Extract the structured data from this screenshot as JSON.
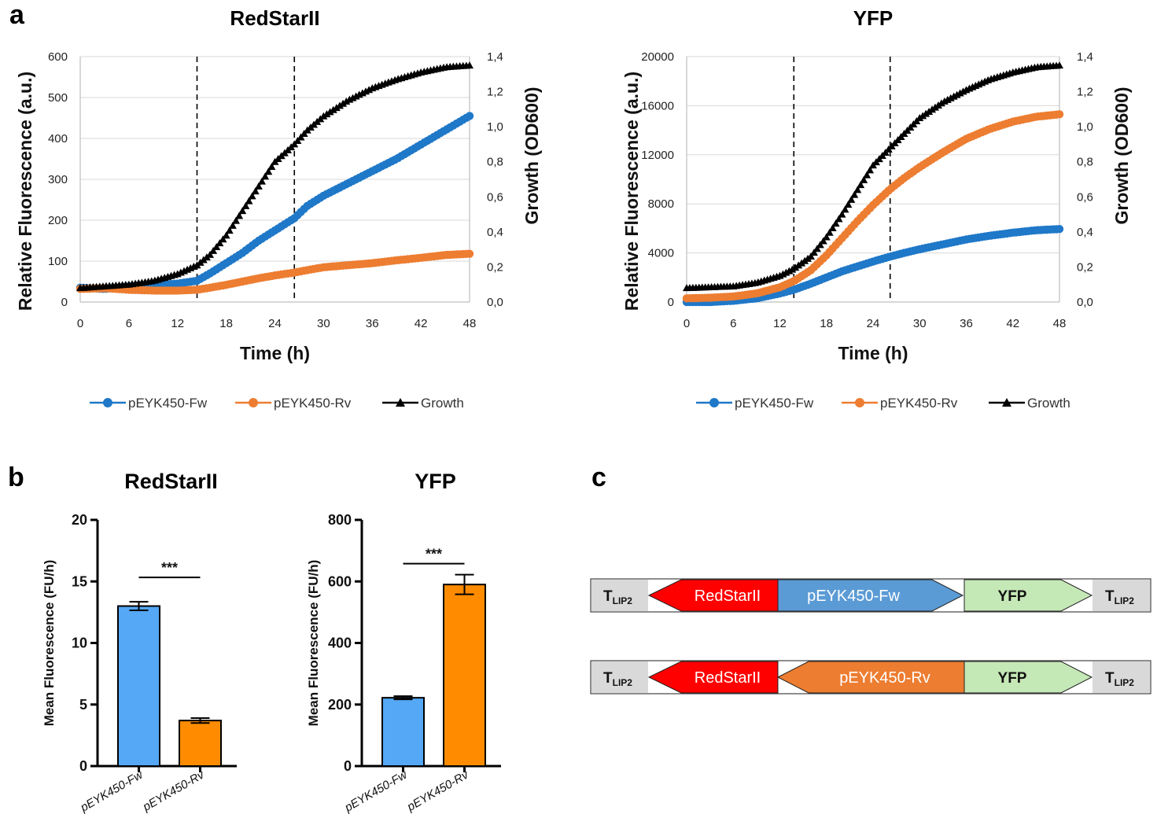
{
  "panel_labels": {
    "a": "a",
    "b": "b",
    "c": "c"
  },
  "colors": {
    "fw": "#1F78C8",
    "rv": "#ED7D31",
    "growth": "#000000",
    "bar_fw": "#55A8F5",
    "bar_rv": "#FF8C00"
  },
  "chart_data": [
    {
      "id": "a-redstar",
      "type": "line",
      "title": "RedStarII",
      "xlabel": "Time (h)",
      "ylabel": "Relative Fluorescence (a.u.)",
      "y2label": "Growth (OD600)",
      "xlim": [
        0,
        48
      ],
      "ylim": [
        0,
        600
      ],
      "y2lim": [
        0,
        1.4
      ],
      "xticks": [
        "0",
        "6",
        "12",
        "18",
        "24",
        "30",
        "36",
        "42",
        "48"
      ],
      "yticks": [
        "0",
        "100",
        "200",
        "300",
        "400",
        "500",
        "600"
      ],
      "y2ticks": [
        "0,0",
        "0,2",
        "0,4",
        "0,6",
        "0,8",
        "1,0",
        "1,2",
        "1,4"
      ],
      "vlines": [
        14.4,
        26.4
      ],
      "x": [
        0,
        3,
        6,
        9,
        12,
        14.4,
        16,
        18,
        20,
        22,
        24,
        26.4,
        28,
        30,
        33,
        36,
        39,
        42,
        45,
        48
      ],
      "series": [
        {
          "name": "pEYK450-Fw",
          "axis": "left",
          "marker": "circle",
          "values": [
            35,
            32,
            38,
            42,
            45,
            52,
            70,
            95,
            120,
            150,
            175,
            205,
            235,
            260,
            290,
            320,
            350,
            385,
            420,
            455
          ]
        },
        {
          "name": "pEYK450-Rv",
          "axis": "left",
          "marker": "circle",
          "values": [
            32,
            34,
            30,
            28,
            28,
            30,
            35,
            42,
            50,
            58,
            65,
            72,
            78,
            85,
            90,
            95,
            102,
            108,
            115,
            118
          ]
        },
        {
          "name": "Growth",
          "axis": "right",
          "marker": "triangle",
          "values": [
            0.08,
            0.09,
            0.1,
            0.12,
            0.16,
            0.21,
            0.27,
            0.38,
            0.52,
            0.66,
            0.8,
            0.9,
            0.98,
            1.06,
            1.15,
            1.22,
            1.27,
            1.31,
            1.34,
            1.35
          ]
        }
      ],
      "legend": [
        "pEYK450-Fw",
        "pEYK450-Rv",
        "Growth"
      ],
      "legend_position": "bottom"
    },
    {
      "id": "a-yfp",
      "type": "line",
      "title": "YFP",
      "xlabel": "Time (h)",
      "ylabel": "Relative Fluorescence (a.u.)",
      "y2label": "Growth (OD600)",
      "xlim": [
        0,
        48
      ],
      "ylim": [
        0,
        20000
      ],
      "y2lim": [
        0,
        1.4
      ],
      "xticks": [
        "0",
        "6",
        "12",
        "18",
        "24",
        "30",
        "36",
        "42",
        "48"
      ],
      "yticks": [
        "0",
        "4000",
        "8000",
        "12000",
        "16000",
        "20000"
      ],
      "y2ticks": [
        "0,0",
        "0,2",
        "0,4",
        "0,6",
        "0,8",
        "1,0",
        "1,2",
        "1,4"
      ],
      "vlines": [
        13.8,
        26.2
      ],
      "x": [
        0,
        3,
        6,
        9,
        12,
        13.8,
        16,
        18,
        20,
        22,
        24,
        26.2,
        28,
        30,
        33,
        36,
        39,
        42,
        45,
        48
      ],
      "series": [
        {
          "name": "pEYK450-Fw",
          "axis": "left",
          "marker": "circle",
          "values": [
            0,
            0,
            100,
            300,
            700,
            1000,
            1500,
            2000,
            2500,
            2900,
            3300,
            3700,
            4000,
            4300,
            4700,
            5100,
            5400,
            5650,
            5850,
            5950
          ]
        },
        {
          "name": "pEYK450-Rv",
          "axis": "left",
          "marker": "circle",
          "values": [
            300,
            350,
            450,
            700,
            1200,
            1700,
            2600,
            3800,
            5200,
            6600,
            7900,
            9200,
            10100,
            11000,
            12200,
            13300,
            14100,
            14700,
            15100,
            15300
          ]
        },
        {
          "name": "Growth",
          "axis": "right",
          "marker": "triangle",
          "values": [
            0.08,
            0.085,
            0.09,
            0.11,
            0.15,
            0.19,
            0.26,
            0.37,
            0.5,
            0.64,
            0.78,
            0.88,
            0.96,
            1.05,
            1.14,
            1.21,
            1.27,
            1.31,
            1.34,
            1.35
          ]
        }
      ],
      "legend": [
        "pEYK450-Fw",
        "pEYK450-Rv",
        "Growth"
      ],
      "legend_position": "bottom"
    },
    {
      "id": "b-redstar",
      "type": "bar",
      "title": "RedStarII",
      "ylabel": "Mean Fluorescence (FU/h)",
      "ylim": [
        0,
        20
      ],
      "yticks": [
        "0",
        "5",
        "10",
        "15",
        "20"
      ],
      "categories": [
        "pEYK450-Fw",
        "pEYK450-Rv"
      ],
      "values": [
        13.0,
        3.7
      ],
      "errors": [
        0.35,
        0.2
      ],
      "significance": "***"
    },
    {
      "id": "b-yfp",
      "type": "bar",
      "title": "YFP",
      "ylabel": "Mean Fluorescence (FU/h)",
      "ylim": [
        0,
        800
      ],
      "yticks": [
        "0",
        "200",
        "400",
        "600",
        "800"
      ],
      "categories": [
        "pEYK450-Fw",
        "pEYK450-Rv"
      ],
      "values": [
        222,
        590
      ],
      "errors": [
        5,
        32
      ],
      "significance": "***"
    }
  ],
  "constructs": [
    {
      "term_left": "T",
      "term_left_sub": "LIP2",
      "reporter_left": "RedStarII",
      "promoter": "pEYK450-Fw",
      "promoter_dir": "right",
      "promoter_color": "#5B9BD5",
      "reporter_right": "YFP",
      "term_right": "T",
      "term_right_sub": "LIP2"
    },
    {
      "term_left": "T",
      "term_left_sub": "LIP2",
      "reporter_left": "RedStarII",
      "promoter": "pEYK450-Rv",
      "promoter_dir": "left",
      "promoter_color": "#ED7D31",
      "reporter_right": "YFP",
      "term_right": "T",
      "term_right_sub": "LIP2"
    }
  ]
}
